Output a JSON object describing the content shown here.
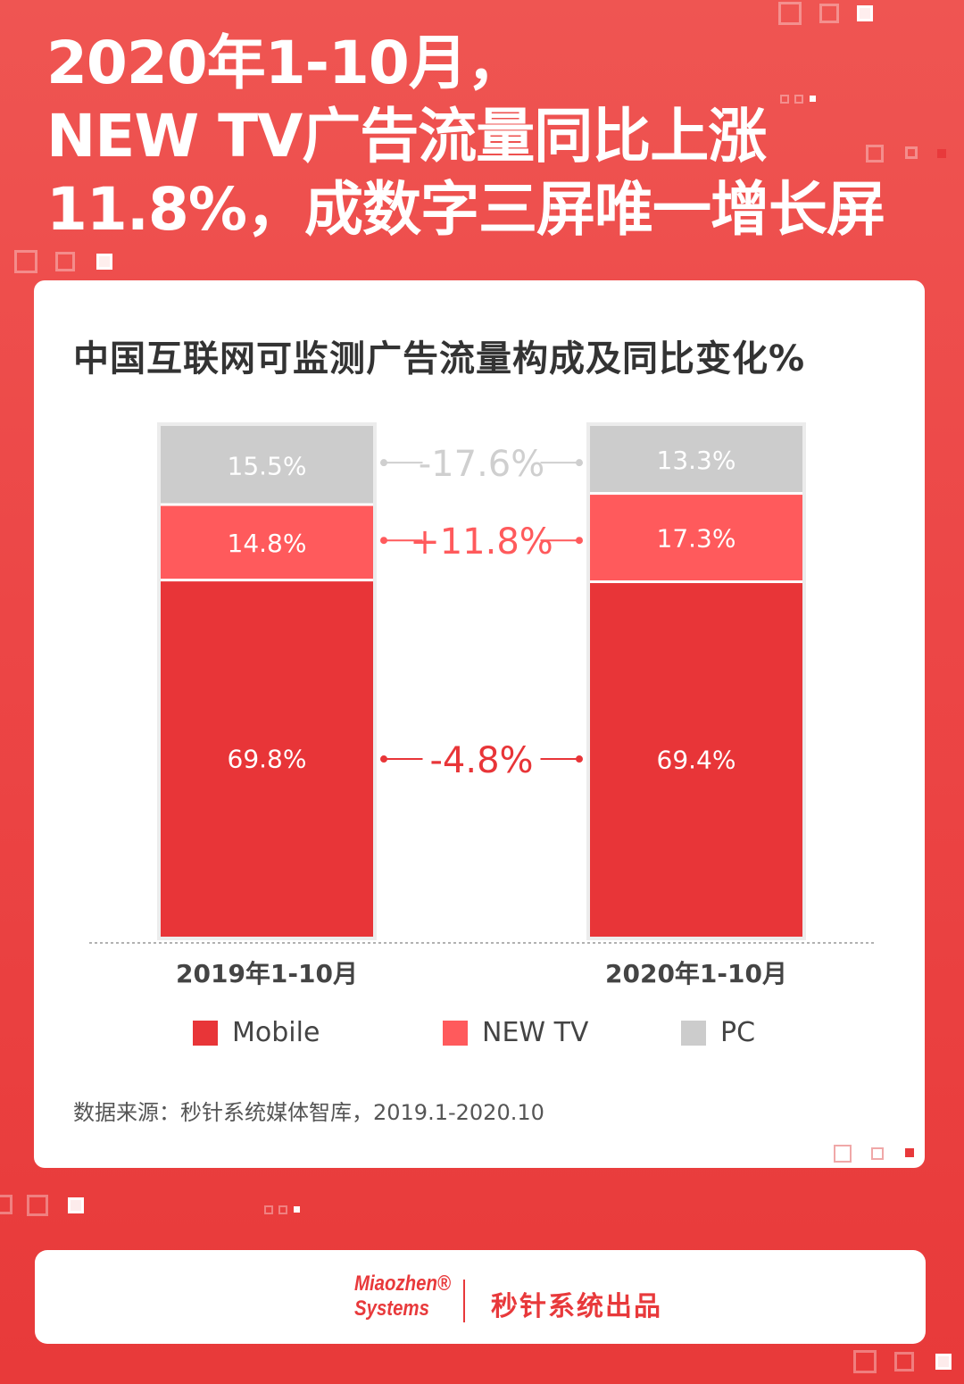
{
  "headline": [
    "2020年1-10月，",
    "NEW TV广告流量同比上涨",
    "11.8%，成数字三屏唯一增长屏"
  ],
  "colors": {
    "background": "#ec4646",
    "mobile": "#e83538",
    "new_tv": "#ff5a5c",
    "pc": "#cccccc",
    "pc_change": "#cfcfcf"
  },
  "chart_data": {
    "type": "bar",
    "stacked": true,
    "title": "中国互联网可监测广告流量构成及同比变化%",
    "categories": [
      "2019年1-10月",
      "2020年1-10月"
    ],
    "series": [
      {
        "name": "Mobile",
        "values": [
          69.8,
          69.4
        ],
        "labels": [
          "69.8%",
          "69.4%"
        ],
        "change": "-4.8%"
      },
      {
        "name": "NEW TV",
        "values": [
          14.8,
          17.3
        ],
        "labels": [
          "14.8%",
          "17.3%"
        ],
        "change": "+11.8%"
      },
      {
        "name": "PC",
        "values": [
          15.5,
          13.3
        ],
        "labels": [
          "15.5%",
          "13.3%"
        ],
        "change": "-17.6%"
      }
    ],
    "ylim": [
      0,
      100
    ],
    "legend_position": "bottom",
    "grid": false
  },
  "source": "数据来源：秒针系统媒体智库，2019.1-2020.10",
  "footer": {
    "logo": [
      "Miaozhen®",
      "Systems"
    ],
    "credit": "秒针系统出品"
  }
}
